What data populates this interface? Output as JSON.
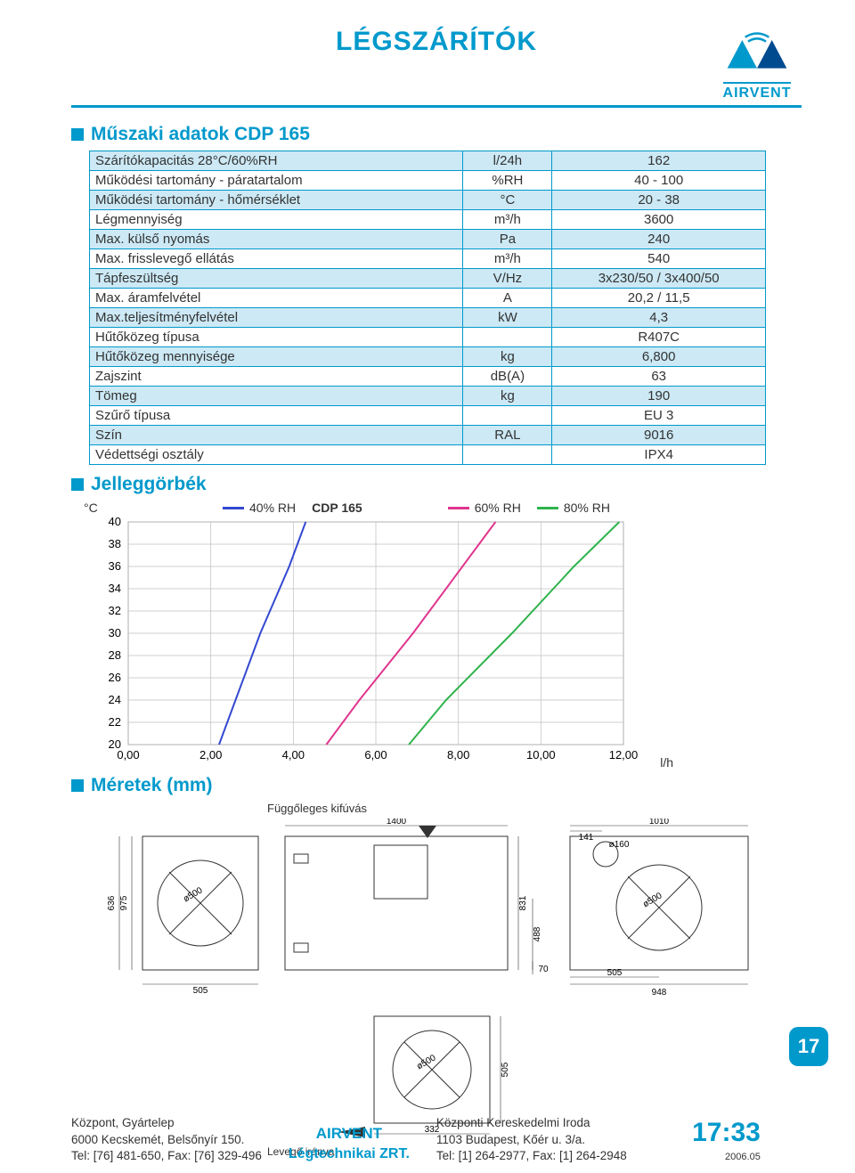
{
  "header": {
    "title": "LÉGSZÁRÍTÓK",
    "brand": "AIRVENT"
  },
  "section1": {
    "title": "Műszaki adatok CDP 165",
    "rows": [
      {
        "hl": true,
        "param": "Szárítókapacitás 28°C/60%RH",
        "unit": "l/24h",
        "val": "162"
      },
      {
        "hl": false,
        "param": "Működési tartomány - páratartalom",
        "unit": "%RH",
        "val": "40 - 100"
      },
      {
        "hl": true,
        "param": "Működési tartomány - hőmérséklet",
        "unit": "°C",
        "val": "20 - 38"
      },
      {
        "hl": false,
        "param": "Légmennyiség",
        "unit": "m³/h",
        "val": "3600"
      },
      {
        "hl": true,
        "param": "Max. külső nyomás",
        "unit": "Pa",
        "val": "240"
      },
      {
        "hl": false,
        "param": "Max. frisslevegő ellátás",
        "unit": "m³/h",
        "val": "540"
      },
      {
        "hl": true,
        "param": "Tápfeszültség",
        "unit": "V/Hz",
        "val": "3x230/50 / 3x400/50"
      },
      {
        "hl": false,
        "param": "Max. áramfelvétel",
        "unit": "A",
        "val": "20,2 / 11,5"
      },
      {
        "hl": true,
        "param": "Max.teljesítményfelvétel",
        "unit": "kW",
        "val": "4,3"
      },
      {
        "hl": false,
        "param": "Hűtőközeg típusa",
        "unit": "",
        "val": "R407C"
      },
      {
        "hl": true,
        "param": "Hűtőközeg mennyisége",
        "unit": "kg",
        "val": "6,800"
      },
      {
        "hl": false,
        "param": "Zajszint",
        "unit": "dB(A)",
        "val": "63"
      },
      {
        "hl": true,
        "param": "Tömeg",
        "unit": "kg",
        "val": "190"
      },
      {
        "hl": false,
        "param": "Szűrő típusa",
        "unit": "",
        "val": "EU 3"
      },
      {
        "hl": true,
        "param": "Szín",
        "unit": "RAL",
        "val": "9016"
      },
      {
        "hl": false,
        "param": "Védettségi osztály",
        "unit": "",
        "val": "IPX4"
      }
    ]
  },
  "section2": {
    "title": "Jelleggörbék",
    "chart": {
      "type": "line",
      "title": "CDP 165",
      "y_label": "°C",
      "x_unit": "l/h",
      "xlim": [
        0,
        12
      ],
      "ylim": [
        20,
        40
      ],
      "xticks": [
        "0,00",
        "2,00",
        "4,00",
        "6,00",
        "8,00",
        "10,00",
        "12,00"
      ],
      "yticks": [
        "20",
        "22",
        "24",
        "26",
        "28",
        "30",
        "32",
        "34",
        "36",
        "38",
        "40"
      ],
      "background_color": "#ffffff",
      "grid_color": "#bfbfbf",
      "line_width": 2,
      "series": [
        {
          "name": "40% RH",
          "color": "#3348d1",
          "points": [
            [
              2.2,
              20
            ],
            [
              2.6,
              24
            ],
            [
              3.2,
              30
            ],
            [
              3.9,
              36
            ],
            [
              4.3,
              40
            ]
          ]
        },
        {
          "name": "60% RH",
          "color": "#e0358e",
          "points": [
            [
              4.8,
              20
            ],
            [
              5.6,
              24
            ],
            [
              6.9,
              30
            ],
            [
              8.1,
              36
            ],
            [
              8.9,
              40
            ]
          ]
        },
        {
          "name": "80% RH",
          "color": "#2fb34c",
          "points": [
            [
              6.8,
              20
            ],
            [
              7.7,
              24
            ],
            [
              9.3,
              30
            ],
            [
              10.8,
              36
            ],
            [
              11.9,
              40
            ]
          ]
        }
      ]
    }
  },
  "section3": {
    "title": "Méretek (mm)",
    "sub": "Függőleges kifúvás",
    "airflow": "Levegő iránya",
    "dims": {
      "w_total": "1400",
      "w_half": "505",
      "w_side": "948",
      "w_side_half": "505",
      "h_total": "975",
      "h_outer": "636",
      "h_inner": "488",
      "h_gap": "70",
      "h_top": "141",
      "h_side": "831",
      "side_w": "1010",
      "circle": "ø160",
      "duct": "ø500",
      "duct2": "ø500",
      "bottom_h": "505",
      "bottom_w": "332"
    }
  },
  "footer": {
    "left1": "Központ, Gyártelep",
    "left2": "6000 Kecskemét, Belsőnyír 150.",
    "left3": "Tel: [76] 481-650, Fax: [76] 329-496",
    "center1": "AIRVENT",
    "center2": "Légtechnikai ZRT.",
    "right1": "Központi Kereskedelmi Iroda",
    "right2": "1103 Budapest, Kőér u. 3/a.",
    "right3": "Tel: [1] 264-2977, Fax: [1] 264-2948",
    "pagenum": "17:33",
    "year": "2006.05",
    "badge": "17"
  }
}
